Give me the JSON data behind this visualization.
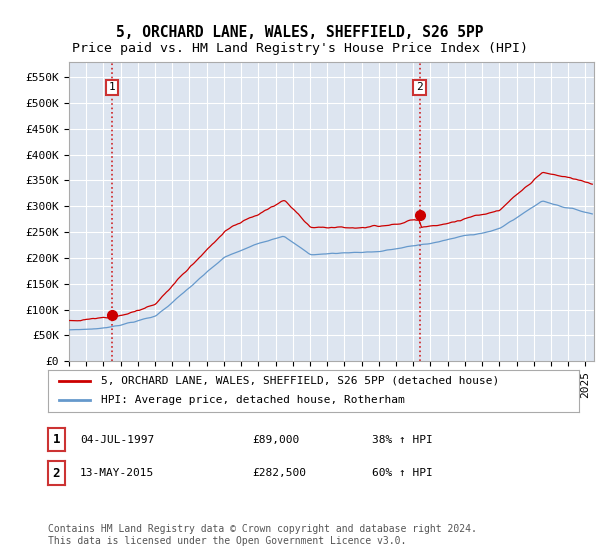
{
  "title": "5, ORCHARD LANE, WALES, SHEFFIELD, S26 5PP",
  "subtitle": "Price paid vs. HM Land Registry's House Price Index (HPI)",
  "ylabel_ticks": [
    "£0",
    "£50K",
    "£100K",
    "£150K",
    "£200K",
    "£250K",
    "£300K",
    "£350K",
    "£400K",
    "£450K",
    "£500K",
    "£550K"
  ],
  "ytick_values": [
    0,
    50000,
    100000,
    150000,
    200000,
    250000,
    300000,
    350000,
    400000,
    450000,
    500000,
    550000
  ],
  "ylim": [
    0,
    580000
  ],
  "sale1_year": 1997.5,
  "sale1_price": 89000,
  "sale2_year": 2015.37,
  "sale2_price": 282500,
  "sale1_date": "04-JUL-1997",
  "sale1_pct": "38% ↑ HPI",
  "sale2_date": "13-MAY-2015",
  "sale2_pct": "60% ↑ HPI",
  "legend_line1": "5, ORCHARD LANE, WALES, SHEFFIELD, S26 5PP (detached house)",
  "legend_line2": "HPI: Average price, detached house, Rotherham",
  "footer": "Contains HM Land Registry data © Crown copyright and database right 2024.\nThis data is licensed under the Open Government Licence v3.0.",
  "line_color_red": "#cc0000",
  "line_color_blue": "#6699cc",
  "bg_color": "#dde5f0",
  "grid_color": "#ffffff",
  "box_color": "#cc3333",
  "title_fontsize": 10.5,
  "subtitle_fontsize": 9.5,
  "tick_fontsize": 8,
  "legend_fontsize": 8,
  "footer_fontsize": 7
}
